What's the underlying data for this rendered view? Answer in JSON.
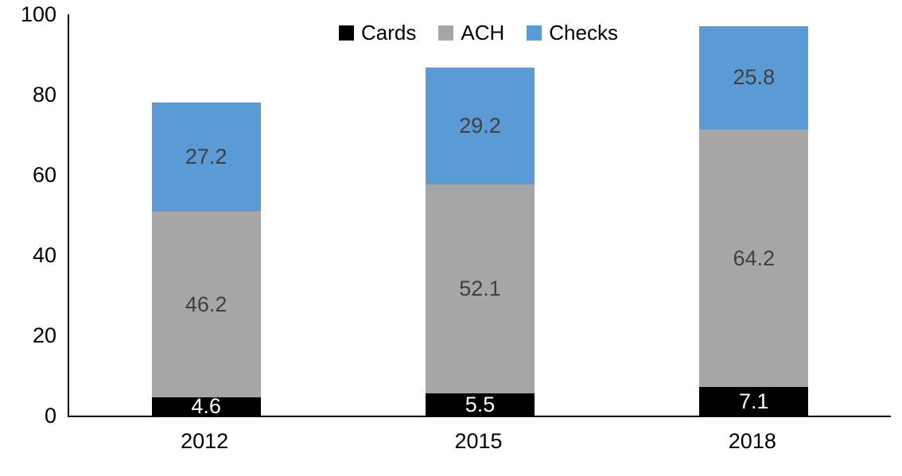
{
  "chart_data": {
    "type": "bar",
    "stacked": true,
    "title": "",
    "xlabel": "",
    "ylabel": "",
    "categories": [
      "2012",
      "2015",
      "2018"
    ],
    "series": [
      {
        "name": "Cards",
        "color": "#000000",
        "label_color": "#ffffff",
        "values": [
          4.6,
          5.5,
          7.1
        ]
      },
      {
        "name": "ACH",
        "color": "#a6a6a6",
        "label_color": "#404040",
        "values": [
          46.2,
          52.1,
          64.2
        ]
      },
      {
        "name": "Checks",
        "color": "#5b9bd5",
        "label_color": "#404040",
        "values": [
          27.2,
          29.2,
          25.8
        ]
      }
    ],
    "totals": [
      78.0,
      86.8,
      97.1
    ],
    "ylim": [
      0,
      100
    ],
    "yticks": [
      0,
      20,
      40,
      60,
      80,
      100
    ],
    "grid": false,
    "legend_position": "top-center",
    "background": "#ffffff",
    "axis_color": "#000000"
  }
}
